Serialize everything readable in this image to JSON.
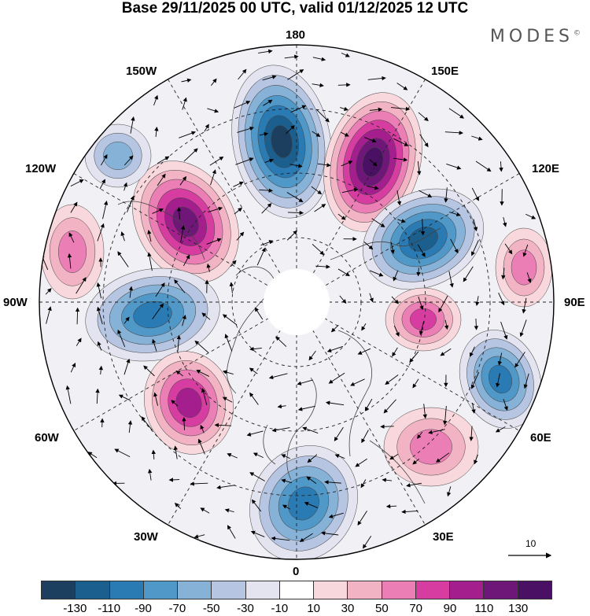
{
  "title": "Base 29/11/2025 00 UTC, valid 01/12/2025 12 UTC",
  "brand": "MODES",
  "brand_mark": "©",
  "longitude_labels": {
    "top": "180",
    "bottom": "0",
    "left": "90W",
    "right": "90E",
    "upper_left": "150W",
    "upper_right": "150E",
    "mid_upper_left": "120W",
    "mid_upper_right": "120E",
    "mid_lower_left": "60W",
    "mid_lower_right": "60E",
    "lower_left": "30W",
    "lower_right": "30E"
  },
  "vector_scale": {
    "label": "10"
  },
  "colorbar": {
    "tick_labels": [
      "-130",
      "-110",
      "-90",
      "-70",
      "-50",
      "-30",
      "-10",
      "10",
      "30",
      "50",
      "70",
      "90",
      "110",
      "130"
    ],
    "colors": [
      "#1c3f5f",
      "#1b5f8f",
      "#2a7ab4",
      "#4f98c8",
      "#86b2d8",
      "#b6c5e2",
      "#e4e4f0",
      "#ffffff",
      "#f8d8dc",
      "#f2b4c4",
      "#ec7eb6",
      "#d73da0",
      "#a41e8e",
      "#6e1778",
      "#4a1063"
    ]
  },
  "anomaly_centers": [
    {
      "sign": "negative",
      "value": -130,
      "region": "north pacific near dateline"
    },
    {
      "sign": "positive",
      "value": 130,
      "region": "east siberia / 150E"
    },
    {
      "sign": "positive",
      "value": 110,
      "region": "gulf of alaska"
    },
    {
      "sign": "negative",
      "value": -110,
      "region": "central siberia"
    },
    {
      "sign": "positive",
      "value": 70,
      "region": "west siberia"
    },
    {
      "sign": "negative",
      "value": -90,
      "region": "central asia"
    },
    {
      "sign": "positive",
      "value": 50,
      "region": "middle east"
    },
    {
      "sign": "negative",
      "value": -90,
      "region": "canada / hudson bay"
    },
    {
      "sign": "positive",
      "value": 90,
      "region": "northwest atlantic"
    },
    {
      "sign": "negative",
      "value": -90,
      "region": "western europe"
    },
    {
      "sign": "negative",
      "value": -50,
      "region": "pacific 130W"
    },
    {
      "sign": "positive",
      "value": 50,
      "region": "eastern pacific 110W"
    },
    {
      "sign": "positive",
      "value": 50,
      "region": "mongolia 100E"
    }
  ]
}
